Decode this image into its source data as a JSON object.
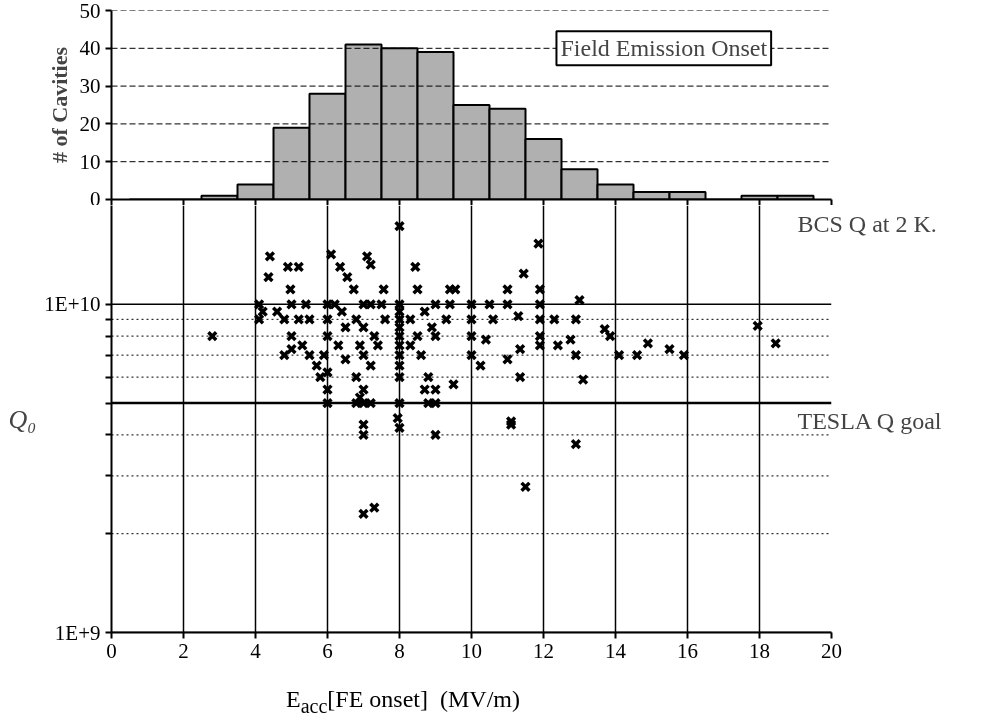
{
  "chart_data": [
    {
      "type": "histogram",
      "title": "Field Emission Onset",
      "ylabel": "# of Cavities",
      "bins": [
        0.5,
        1.5,
        2.5,
        3.5,
        4.5,
        5.5,
        6.5,
        7.5,
        8.5,
        9.5,
        10.5,
        11.5,
        12.5,
        13.5,
        14.5,
        15.5,
        16.5,
        17.5,
        18.5,
        19.5
      ],
      "values": [
        0,
        0,
        1,
        4,
        19,
        28,
        41,
        40,
        39,
        25,
        24,
        16,
        8,
        4,
        2,
        2,
        0,
        1,
        1
      ],
      "color": "#b0b0b0",
      "xlim": [
        0,
        20
      ],
      "ylim": [
        0,
        50
      ],
      "xticks": [
        0,
        2,
        4,
        6,
        8,
        10,
        12,
        14,
        16,
        18,
        20
      ],
      "yticks": [
        0,
        10,
        20,
        30,
        40,
        50
      ],
      "grid": "y",
      "tick_labels": "y"
    },
    {
      "type": "scatter",
      "xlabel": "E$_{acc}$[FE onset]  (MV/m)",
      "ylabel": "Q₀",
      "log": "y",
      "marker": "cross",
      "grid": true,
      "xlim": [
        0,
        20
      ],
      "ylim": [
        1000000000.0,
        20000000000.0
      ],
      "xticks": [
        0,
        2,
        4,
        6,
        8,
        10,
        12,
        14,
        16,
        18,
        20
      ],
      "yticks": [
        {
          "value": 1000000000.0,
          "label": "1E+9"
        },
        {
          "value": 2000000000.0,
          "label": null
        },
        {
          "value": 3000000000.0,
          "label": null
        },
        {
          "value": 4000000000.0,
          "label": null
        },
        {
          "value": 5000000000.0,
          "label": null
        },
        {
          "value": 6000000000.0,
          "label": null
        },
        {
          "value": 7000000000.0,
          "label": null
        },
        {
          "value": 8000000000.0,
          "label": null
        },
        {
          "value": 9000000000.0,
          "label": null
        },
        {
          "value": 10000000000.0,
          "label": "1E+10"
        }
      ],
      "ref_lines": [
        {
          "axis": "y",
          "value": 5000000000.0,
          "label": "TESLA Q goal"
        }
      ],
      "annotations": [
        "BCS Q at 2 K."
      ],
      "series": [
        {
          "color": "#000000",
          "x": [
            2.8,
            4.1,
            4.1,
            4.2,
            4.4,
            4.36,
            4.9,
            5.2,
            4.97,
            4.6,
            4.8,
            5.0,
            5.0,
            5.2,
            5.0,
            4.8,
            5.3,
            5.5,
            5.5,
            5.4,
            5.7,
            5.8,
            6.0,
            6.0,
            6.0,
            5.9,
            6.0,
            6.0,
            6.0,
            6.2,
            6.1,
            6.35,
            6.55,
            6.3,
            6.5,
            6.5,
            6.4,
            6.73,
            7.1,
            7.2,
            7.0,
            7.2,
            6.8,
            7.0,
            7.3,
            6.9,
            7.0,
            6.8,
            7.0,
            7.2,
            6.8,
            6.9,
            7.0,
            7.2,
            7.0,
            7.0,
            7.0,
            7.3,
            7.56,
            7.5,
            7.6,
            7.4,
            8.0,
            8.0,
            8.0,
            8.0,
            8.0,
            8.0,
            8.0,
            8.0,
            8.0,
            8.0,
            8.0,
            7.95,
            8.0,
            8.44,
            8.5,
            8.3,
            8.5,
            8.6,
            8.3,
            8.7,
            8.9,
            9.0,
            8.8,
            8.7,
            9.0,
            8.8,
            9.0,
            9.0,
            9.0,
            9.4,
            9.4,
            9.3,
            9.5,
            9.55,
            10.0,
            10.0,
            10.0,
            10.0,
            10.5,
            10.6,
            10.4,
            10.25,
            11.0,
            11.0,
            11.3,
            11.45,
            11.0,
            11.35,
            11.35,
            11.1,
            11.1,
            11.5,
            11.86,
            11.9,
            11.9,
            11.9,
            11.9,
            11.9,
            12.3,
            12.4,
            12.75,
            12.9,
            12.9,
            13.0,
            13.1,
            12.9,
            13.7,
            13.85,
            14.1,
            14.6,
            14.9,
            15.5,
            15.9,
            17.95,
            18.45
          ],
          "values": [
            8000000000.0,
            10000000000.0,
            9000000000.0,
            9500000000.0,
            14000000000.0,
            12100000000.0,
            13000000000.0,
            13000000000.0,
            11100000000.0,
            9500000000.0,
            9000000000.0,
            10000000000.0,
            8000000000.0,
            9000000000.0,
            7300000000.0,
            7000000000.0,
            7500000000.0,
            7000000000.0,
            9000000000.0,
            10000000000.0,
            6500000000.0,
            6000000000.0,
            6200000000.0,
            5000000000.0,
            5500000000.0,
            7000000000.0,
            8000000000.0,
            9000000000.0,
            10000000000.0,
            10000000000.0,
            14200000000.0,
            13000000000.0,
            12100000000.0,
            7500000000.0,
            6800000000.0,
            8500000000.0,
            9500000000.0,
            11100000000.0,
            14000000000.0,
            13200000000.0,
            10000000000.0,
            10000000000.0,
            9000000000.0,
            8500000000.0,
            8000000000.0,
            7500000000.0,
            7000000000.0,
            6000000000.0,
            5500000000.0,
            6500000000.0,
            5000000000.0,
            5200000000.0,
            5000000000.0,
            5000000000.0,
            4300000000.0,
            4000000000.0,
            2300000000.0,
            2400000000.0,
            11100000000.0,
            10000000000.0,
            9000000000.0,
            7500000000.0,
            17300000000.0,
            10000000000.0,
            9500000000.0,
            9000000000.0,
            8500000000.0,
            8000000000.0,
            7500000000.0,
            7000000000.0,
            6500000000.0,
            6000000000.0,
            5000000000.0,
            4500000000.0,
            4200000000.0,
            13000000000.0,
            11100000000.0,
            9000000000.0,
            8000000000.0,
            7000000000.0,
            7500000000.0,
            9500000000.0,
            8500000000.0,
            8000000000.0,
            6000000000.0,
            5500000000.0,
            5500000000.0,
            5000000000.0,
            5000000000.0,
            4000000000.0,
            10000000000.0,
            11100000000.0,
            10000000000.0,
            9000000000.0,
            5700000000.0,
            11100000000.0,
            10000000000.0,
            9000000000.0,
            8000000000.0,
            7000000000.0,
            10000000000.0,
            9000000000.0,
            7800000000.0,
            6500000000.0,
            11100000000.0,
            10000000000.0,
            9200000000.0,
            12400000000.0,
            6800000000.0,
            7300000000.0,
            6000000000.0,
            4400000000.0,
            4300000000.0,
            2780000000.0,
            15300000000.0,
            11100000000.0,
            10000000000.0,
            9000000000.0,
            8000000000.0,
            7500000000.0,
            9000000000.0,
            7500000000.0,
            7800000000.0,
            9000000000.0,
            7000000000.0,
            10300000000.0,
            5900000000.0,
            3750000000.0,
            8400000000.0,
            8000000000.0,
            7000000000.0,
            7000000000.0,
            7600000000.0,
            7300000000.0,
            7000000000.0,
            8600000000.0,
            7600000000.0
          ]
        }
      ]
    }
  ]
}
